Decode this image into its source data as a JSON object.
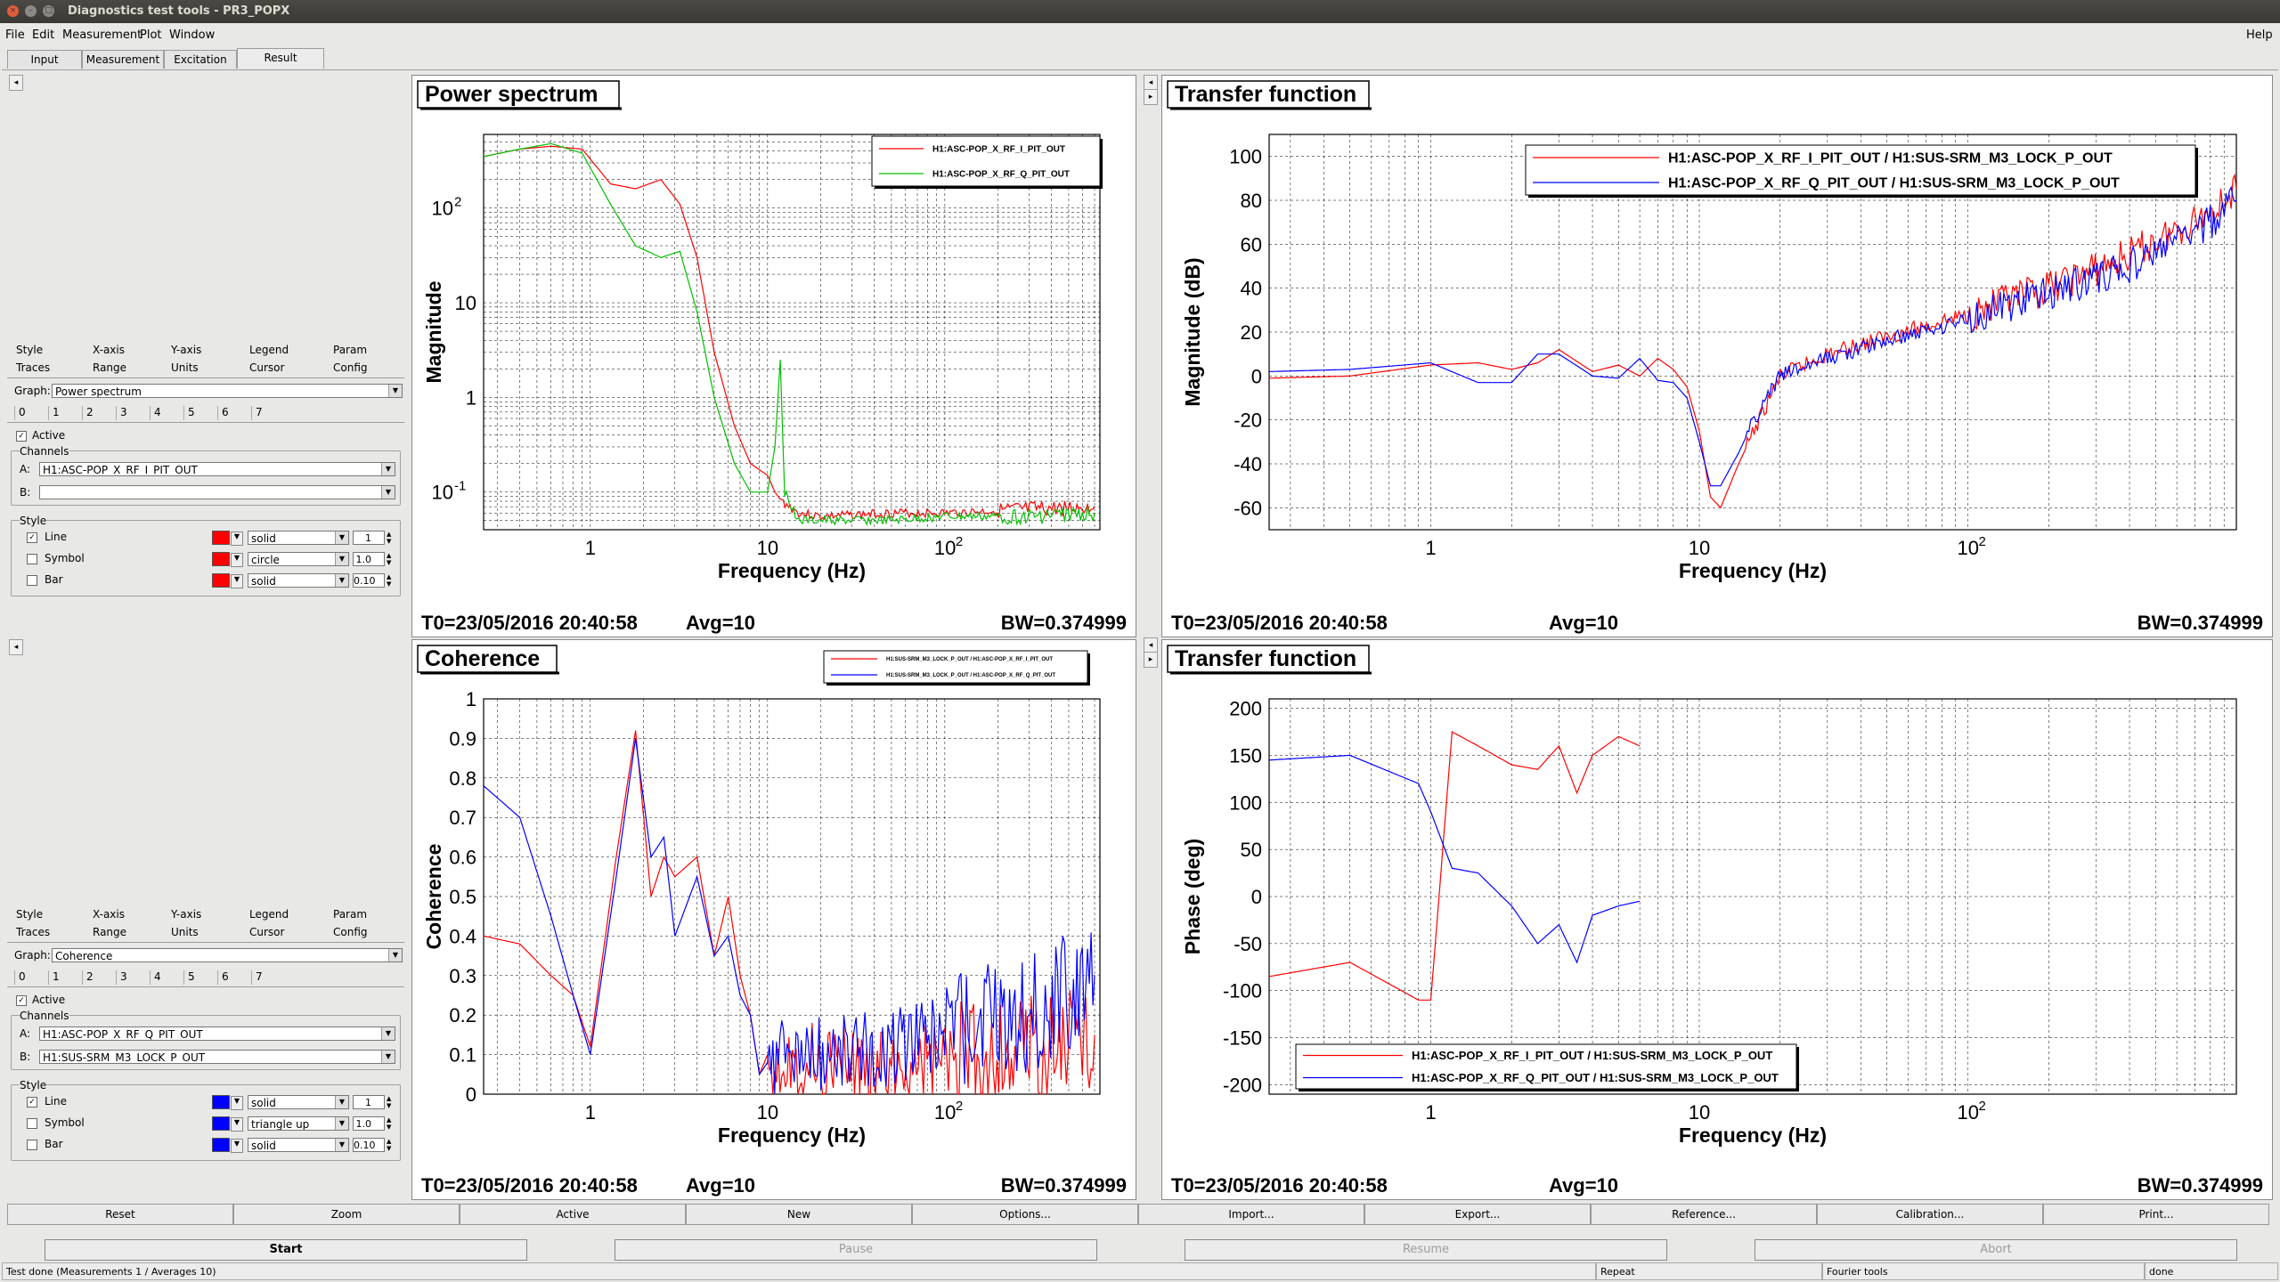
{
  "window": {
    "title": "Diagnostics test tools - PR3_POPX",
    "close_glyph": "×",
    "min_glyph": "–",
    "max_glyph": "□"
  },
  "menu": [
    "File",
    "Edit",
    "Measurement",
    "Plot",
    "Window",
    "Help"
  ],
  "main_tabs": [
    "Input",
    "Measurement",
    "Excitation",
    "Result"
  ],
  "arrows": {
    "left": "◂",
    "right": "▸"
  },
  "panels": [
    {
      "tabs_row1": [
        "Style",
        "X-axis",
        "Y-axis",
        "Legend",
        "Param"
      ],
      "tabs_row2": [
        "Traces",
        "Range",
        "Units",
        "Cursor",
        "Config"
      ],
      "graph_label": "Graph:",
      "graph_value": "Power spectrum",
      "trace_tabs": [
        "0",
        "1",
        "2",
        "3",
        "4",
        "5",
        "6",
        "7"
      ],
      "active_label": "Active",
      "channels_label": "Channels",
      "chan_a_label": "A:",
      "chan_a": "H1:ASC-POP_X_RF_I_PIT_OUT",
      "chan_b_label": "B:",
      "chan_b": "",
      "style_label": "Style",
      "line_label": "Line",
      "symbol_label": "Symbol",
      "bar_label": "Bar",
      "line_style": "solid",
      "symbol_style": "circle",
      "bar_style": "solid",
      "line_width": "1",
      "symbol_size": "1.0",
      "bar_width": "0.10",
      "swatch_color": "#ff0000"
    },
    {
      "tabs_row1": [
        "Style",
        "X-axis",
        "Y-axis",
        "Legend",
        "Param"
      ],
      "tabs_row2": [
        "Traces",
        "Range",
        "Units",
        "Cursor",
        "Config"
      ],
      "graph_label": "Graph:",
      "graph_value": "Coherence",
      "trace_tabs": [
        "0",
        "1",
        "2",
        "3",
        "4",
        "5",
        "6",
        "7"
      ],
      "active_label": "Active",
      "channels_label": "Channels",
      "chan_a_label": "A:",
      "chan_a": "H1:ASC-POP_X_RF_Q_PIT_OUT",
      "chan_b_label": "B:",
      "chan_b": "H1:SUS-SRM_M3_LOCK_P_OUT",
      "style_label": "Style",
      "line_label": "Line",
      "symbol_label": "Symbol",
      "bar_label": "Bar",
      "line_style": "solid",
      "symbol_style": "triangle up",
      "bar_style": "solid",
      "line_width": "1",
      "symbol_size": "1.0",
      "bar_width": "0.10",
      "swatch_color": "#0000ff"
    }
  ],
  "bottom_buttons": [
    "Reset",
    "Zoom",
    "Active",
    "New",
    "Options...",
    "Import...",
    "Export...",
    "Reference...",
    "Calibration...",
    "Print..."
  ],
  "run_buttons": [
    "Start",
    "Pause",
    "Resume",
    "Abort"
  ],
  "status": [
    "Test done (Measurements 1 / Averages 10)",
    "Repeat",
    "Fourier tools",
    "done"
  ],
  "chart_data": [
    {
      "type": "line",
      "title": "Power spectrum",
      "xlabel": "Frequency (Hz)",
      "ylabel": "Magnitude",
      "xscale": "log",
      "yscale": "log",
      "xlim": [
        0.25,
        750
      ],
      "ylim": [
        0.04,
        600
      ],
      "xticks": [
        "1",
        "10",
        "10^2"
      ],
      "yticks": [
        "10^-1",
        "1",
        "10",
        "10^2"
      ],
      "legend": "top-right",
      "series": [
        {
          "name": "H1:ASC-POP_X_RF_I_PIT_OUT",
          "color": "#ff0000",
          "x": [
            0.25,
            0.4,
            0.6,
            0.9,
            1.3,
            1.8,
            2.5,
            3.2,
            4.0,
            5.0,
            6.5,
            8.0,
            10,
            11,
            12,
            15,
            20,
            50,
            100,
            300,
            700
          ],
          "y": [
            350,
            420,
            450,
            420,
            180,
            160,
            200,
            110,
            30,
            3.0,
            0.5,
            0.2,
            0.15,
            0.1,
            0.08,
            0.06,
            0.055,
            0.06,
            0.06,
            0.065,
            0.07
          ]
        },
        {
          "name": "H1:ASC-POP_X_RF_Q_PIT_OUT",
          "color": "#00c000",
          "x": [
            0.25,
            0.4,
            0.6,
            0.9,
            1.3,
            1.8,
            2.5,
            3.2,
            4.0,
            5.0,
            6.5,
            8.0,
            10,
            11,
            11.8,
            12.5,
            15,
            20,
            50,
            100,
            300,
            700
          ],
          "y": [
            350,
            420,
            480,
            380,
            110,
            40,
            30,
            35,
            8,
            1.0,
            0.2,
            0.1,
            0.1,
            0.3,
            2.5,
            0.1,
            0.05,
            0.05,
            0.05,
            0.055,
            0.055,
            0.06
          ]
        }
      ]
    },
    {
      "type": "line",
      "title": "Transfer function",
      "xlabel": "Frequency (Hz)",
      "ylabel": "Magnitude (dB)",
      "xscale": "log",
      "xlim": [
        0.25,
        1000
      ],
      "ylim": [
        -70,
        110
      ],
      "xticks": [
        "1",
        "10",
        "10^2"
      ],
      "yticks": [
        "-60",
        "-40",
        "-20",
        "0",
        "20",
        "40",
        "60",
        "80",
        "100"
      ],
      "legend": "top",
      "series": [
        {
          "name": "H1:ASC-POP_X_RF_I_PIT_OUT / H1:SUS-SRM_M3_LOCK_P_OUT",
          "color": "#ff0000",
          "x": [
            0.25,
            0.5,
            1.0,
            1.5,
            2.0,
            2.5,
            3.0,
            4.0,
            5.0,
            6.0,
            7.0,
            8.0,
            9.0,
            10,
            11,
            12,
            14,
            16,
            20,
            30,
            50,
            100,
            200,
            400,
            800,
            1000
          ],
          "y": [
            -1,
            0,
            5,
            6,
            3,
            6,
            12,
            2,
            5,
            0,
            8,
            3,
            -5,
            -25,
            -55,
            -60,
            -40,
            -25,
            0,
            10,
            18,
            28,
            40,
            55,
            75,
            85
          ]
        },
        {
          "name": "H1:ASC-POP_X_RF_Q_PIT_OUT / H1:SUS-SRM_M3_LOCK_P_OUT",
          "color": "#0000ff",
          "x": [
            0.25,
            0.5,
            1.0,
            1.5,
            2.0,
            2.5,
            3.0,
            4.0,
            5.0,
            6.0,
            7.0,
            8.0,
            9.0,
            10,
            11,
            12,
            14,
            16,
            20,
            30,
            50,
            100,
            200,
            400,
            800,
            1000
          ],
          "y": [
            2,
            3,
            6,
            -3,
            -3,
            10,
            10,
            0,
            -1,
            8,
            -2,
            -3,
            -10,
            -30,
            -50,
            -50,
            -35,
            -20,
            0,
            8,
            16,
            26,
            38,
            50,
            70,
            80
          ]
        }
      ]
    },
    {
      "type": "line",
      "title": "Coherence",
      "xlabel": "Frequency (Hz)",
      "ylabel": "Coherence",
      "xscale": "log",
      "xlim": [
        0.25,
        750
      ],
      "ylim": [
        0,
        1
      ],
      "xticks": [
        "1",
        "10",
        "10^2"
      ],
      "yticks": [
        "0",
        "0.1",
        "0.2",
        "0.3",
        "0.4",
        "0.5",
        "0.6",
        "0.7",
        "0.8",
        "0.9",
        "1"
      ],
      "legend": "top-right",
      "series": [
        {
          "name": "H1:SUS-SRM_M3_LOCK_P_OUT / H1:ASC-POP_X_RF_I_PIT_OUT",
          "color": "#ff0000",
          "x": [
            0.25,
            0.4,
            0.6,
            0.8,
            1.0,
            1.4,
            1.8,
            2.2,
            2.6,
            3.0,
            4.0,
            5.0,
            6.0,
            7.0,
            8.0,
            9.0,
            10,
            20,
            50,
            100,
            300,
            700
          ],
          "y": [
            0.4,
            0.38,
            0.3,
            0.25,
            0.12,
            0.6,
            0.92,
            0.5,
            0.6,
            0.55,
            0.6,
            0.35,
            0.5,
            0.3,
            0.2,
            0.05,
            0.1,
            0.08,
            0.06,
            0.08,
            0.1,
            0.15
          ]
        },
        {
          "name": "H1:SUS-SRM_M3_LOCK_P_OUT / H1:ASC-POP_X_RF_Q_PIT_OUT",
          "color": "#0000ff",
          "x": [
            0.25,
            0.4,
            0.6,
            0.8,
            1.0,
            1.4,
            1.8,
            2.2,
            2.6,
            3.0,
            4.0,
            5.0,
            6.0,
            7.0,
            8.0,
            9.0,
            10,
            20,
            50,
            100,
            300,
            700
          ],
          "y": [
            0.78,
            0.7,
            0.45,
            0.25,
            0.1,
            0.55,
            0.9,
            0.6,
            0.65,
            0.4,
            0.55,
            0.35,
            0.4,
            0.25,
            0.2,
            0.05,
            0.08,
            0.1,
            0.12,
            0.15,
            0.2,
            0.3
          ]
        }
      ]
    },
    {
      "type": "line",
      "title": "Transfer function",
      "xlabel": "Frequency (Hz)",
      "ylabel": "Phase (deg)",
      "xscale": "log",
      "xlim": [
        0.25,
        1000
      ],
      "ylim": [
        -210,
        210
      ],
      "xticks": [
        "1",
        "10",
        "10^2"
      ],
      "yticks": [
        "-200",
        "-150",
        "-100",
        "-50",
        "0",
        "50",
        "100",
        "150",
        "200"
      ],
      "legend": "bottom",
      "series": [
        {
          "name": "H1:ASC-POP_X_RF_I_PIT_OUT / H1:SUS-SRM_M3_LOCK_P_OUT",
          "color": "#ff0000",
          "x": [
            0.25,
            0.5,
            0.9,
            1.0,
            1.2,
            1.5,
            2.0,
            2.5,
            3.0,
            3.5,
            4.0,
            5.0,
            6.0
          ],
          "y": [
            -85,
            -70,
            -110,
            -110,
            175,
            160,
            140,
            135,
            160,
            110,
            150,
            170,
            160
          ]
        },
        {
          "name": "H1:ASC-POP_X_RF_Q_PIT_OUT / H1:SUS-SRM_M3_LOCK_P_OUT",
          "color": "#0000ff",
          "x": [
            0.25,
            0.5,
            0.9,
            1.0,
            1.2,
            1.5,
            2.0,
            2.5,
            3.0,
            3.5,
            4.0,
            5.0,
            6.0
          ],
          "y": [
            145,
            150,
            120,
            90,
            30,
            25,
            -10,
            -50,
            -30,
            -70,
            -20,
            -10,
            -5
          ]
        }
      ]
    }
  ],
  "pad_info": [
    {
      "t0": "T0=23/05/2016 20:40:58",
      "avg": "Avg=10",
      "bw": "BW=0.374999"
    },
    {
      "t0": "T0=23/05/2016 20:40:58",
      "avg": "Avg=10",
      "bw": "BW=0.374999"
    },
    {
      "t0": "T0=23/05/2016 20:40:58",
      "avg": "Avg=10",
      "bw": "BW=0.374999"
    },
    {
      "t0": "T0=23/05/2016 20:40:58",
      "avg": "Avg=10",
      "bw": "BW=0.374999"
    }
  ]
}
